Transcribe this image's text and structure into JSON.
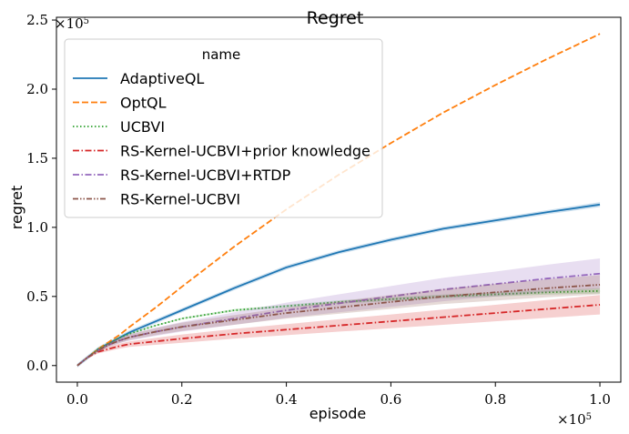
{
  "chart_data": {
    "type": "line",
    "title": "Regret",
    "xlabel": "episode",
    "ylabel": "regret",
    "x_offset_label": "×10",
    "x_offset_exp": "5",
    "y_offset_label": "×10",
    "y_offset_exp": "5",
    "xlim": [
      -0.04,
      1.04
    ],
    "ylim": [
      -0.12,
      2.52
    ],
    "x_ticks": [
      0.0,
      0.2,
      0.4,
      0.6,
      0.8,
      1.0
    ],
    "x_tick_labels": [
      "0.0",
      "0.2",
      "0.4",
      "0.6",
      "0.8",
      "1.0"
    ],
    "y_ticks": [
      0.0,
      0.5,
      1.0,
      1.5,
      2.0,
      2.5
    ],
    "y_tick_labels": [
      "0.0",
      "0.5",
      "1.0",
      "1.5",
      "2.0",
      "2.5"
    ],
    "grid": false,
    "legend": {
      "title": "name",
      "placement": "top-left",
      "entries": [
        "AdaptiveQL",
        "OptQL",
        "UCBVI",
        "RS-Kernel-UCBVI+prior knowledge",
        "RS-Kernel-UCBVI+RTDP",
        "RS-Kernel-UCBVI"
      ]
    },
    "x": [
      0.0,
      0.02,
      0.04,
      0.06,
      0.08,
      0.1,
      0.15,
      0.2,
      0.3,
      0.4,
      0.5,
      0.6,
      0.7,
      0.8,
      0.9,
      1.0
    ],
    "series": [
      {
        "name": "AdaptiveQL",
        "color": "#1f77b4",
        "dash": "solid",
        "values": [
          0.0,
          0.06,
          0.12,
          0.16,
          0.2,
          0.24,
          0.32,
          0.4,
          0.56,
          0.71,
          0.82,
          0.91,
          0.99,
          1.05,
          1.11,
          1.165
        ],
        "band": [
          0.015,
          0.015,
          0.015,
          0.015,
          0.015,
          0.015,
          0.015,
          0.015,
          0.015,
          0.015,
          0.015,
          0.015,
          0.015,
          0.015,
          0.015,
          0.018
        ]
      },
      {
        "name": "OptQL",
        "color": "#ff7f0e",
        "dash": "dashed",
        "values": [
          0.0,
          0.06,
          0.12,
          0.17,
          0.22,
          0.28,
          0.42,
          0.57,
          0.86,
          1.13,
          1.38,
          1.61,
          1.83,
          2.03,
          2.22,
          2.4
        ],
        "band": [
          0,
          0,
          0,
          0,
          0,
          0,
          0,
          0,
          0,
          0,
          0,
          0,
          0,
          0,
          0,
          0
        ]
      },
      {
        "name": "UCBVI",
        "color": "#2ca02c",
        "dash": "dotted",
        "values": [
          0.0,
          0.06,
          0.12,
          0.16,
          0.2,
          0.23,
          0.29,
          0.34,
          0.4,
          0.43,
          0.46,
          0.48,
          0.5,
          0.515,
          0.53,
          0.54
        ],
        "band": [
          0.005,
          0.005,
          0.005,
          0.005,
          0.005,
          0.005,
          0.005,
          0.006,
          0.008,
          0.01,
          0.012,
          0.013,
          0.014,
          0.015,
          0.016,
          0.018
        ]
      },
      {
        "name": "RS-Kernel-UCBVI+prior knowledge",
        "color": "#d62728",
        "dash": "dashdot",
        "values": [
          0.0,
          0.06,
          0.1,
          0.12,
          0.14,
          0.155,
          0.175,
          0.195,
          0.23,
          0.26,
          0.29,
          0.32,
          0.35,
          0.38,
          0.41,
          0.44
        ],
        "band": [
          0.003,
          0.008,
          0.012,
          0.015,
          0.018,
          0.02,
          0.025,
          0.03,
          0.035,
          0.04,
          0.045,
          0.05,
          0.055,
          0.06,
          0.065,
          0.07
        ]
      },
      {
        "name": "RS-Kernel-UCBVI+RTDP",
        "color": "#9467bd",
        "dash": "dashdot",
        "values": [
          0.0,
          0.06,
          0.11,
          0.15,
          0.18,
          0.205,
          0.245,
          0.28,
          0.34,
          0.4,
          0.45,
          0.5,
          0.55,
          0.59,
          0.63,
          0.665
        ],
        "band": [
          0.003,
          0.006,
          0.01,
          0.015,
          0.02,
          0.025,
          0.03,
          0.035,
          0.045,
          0.055,
          0.065,
          0.075,
          0.085,
          0.09,
          0.1,
          0.11
        ]
      },
      {
        "name": "RS-Kernel-UCBVI",
        "color": "#8c564b",
        "dash": "dashdotdot",
        "values": [
          0.0,
          0.06,
          0.11,
          0.15,
          0.18,
          0.205,
          0.245,
          0.28,
          0.33,
          0.38,
          0.42,
          0.46,
          0.5,
          0.53,
          0.56,
          0.585
        ],
        "band": [
          0.003,
          0.006,
          0.01,
          0.015,
          0.018,
          0.02,
          0.025,
          0.03,
          0.035,
          0.04,
          0.045,
          0.05,
          0.055,
          0.06,
          0.065,
          0.07
        ]
      }
    ]
  }
}
